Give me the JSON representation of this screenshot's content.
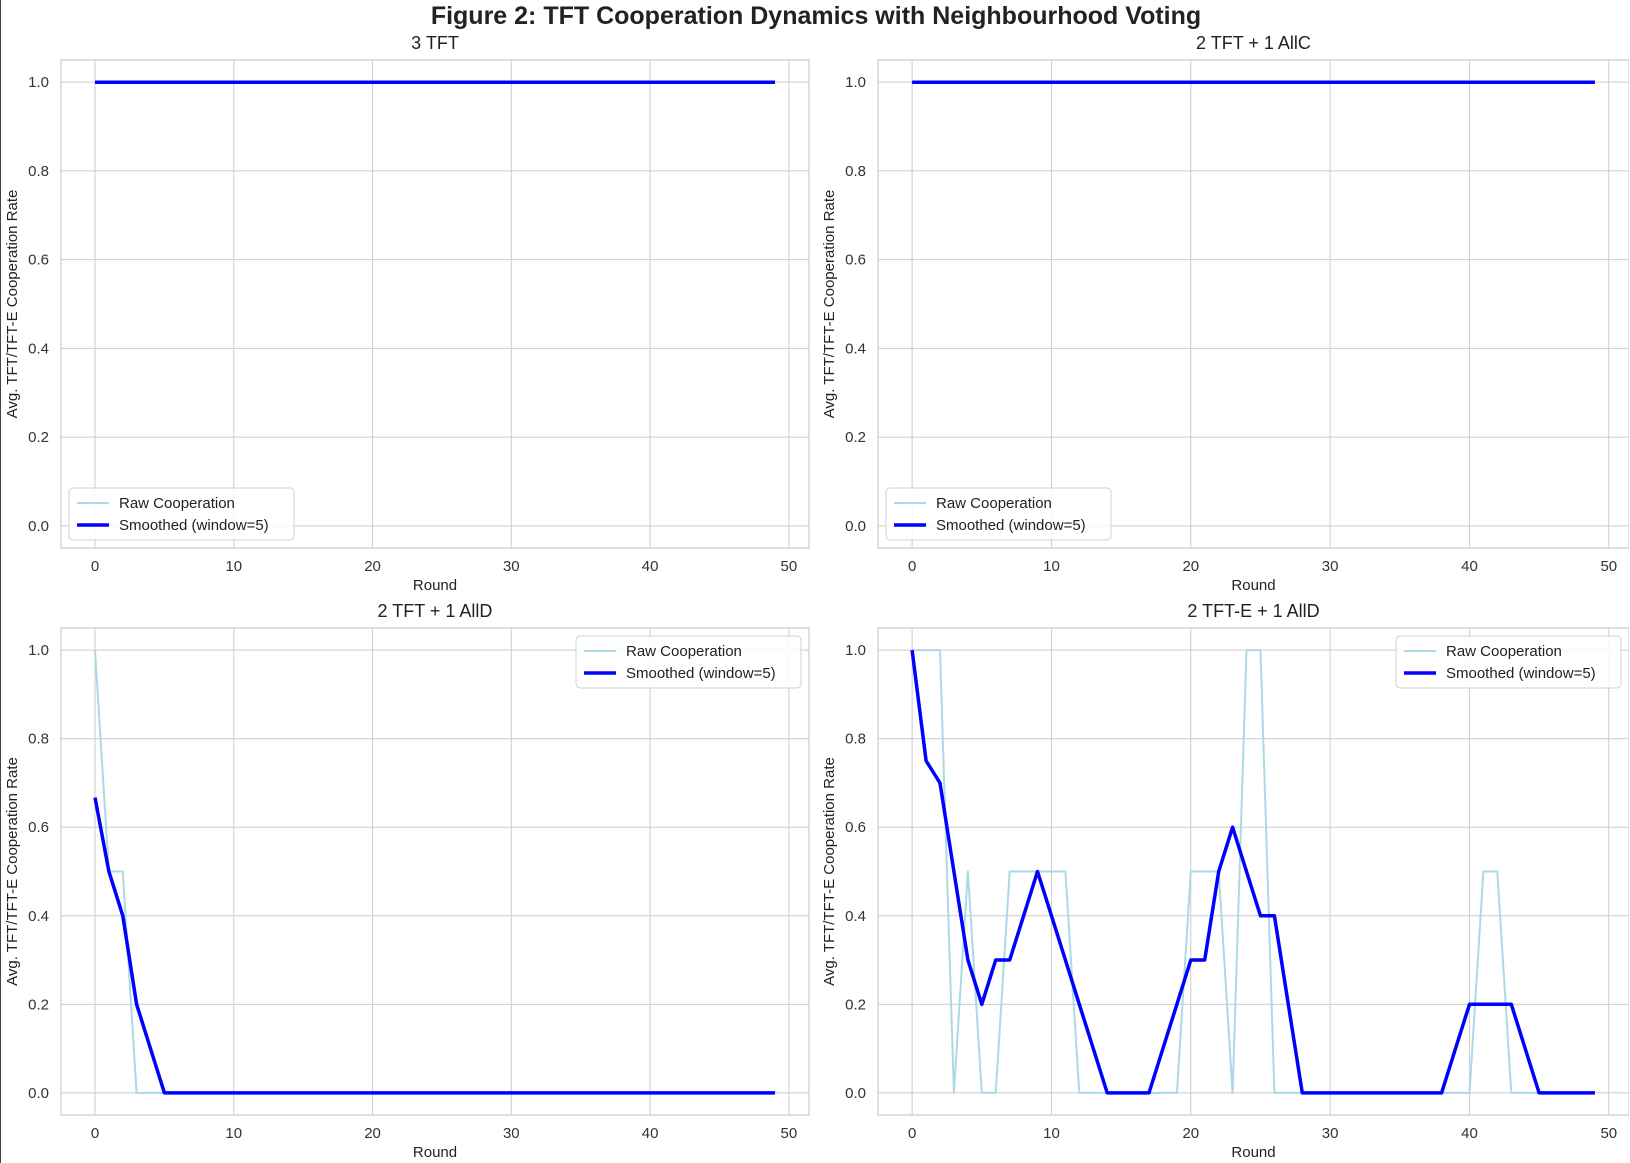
{
  "figure_title": "Figure 2: TFT Cooperation Dynamics with Neighbourhood Voting",
  "colors": {
    "raw": "#add8e6",
    "smoothed": "#0000ff",
    "grid": "#cccccc",
    "axes": "#cccccc"
  },
  "chart_data": [
    {
      "type": "line",
      "title": "3 TFT",
      "xlabel": "Round",
      "ylabel": "Avg. TFT/TFT-E Cooperation Rate",
      "xlim": [
        -2.45,
        51.45
      ],
      "ylim": [
        -0.05,
        1.05
      ],
      "xticks": [
        0,
        10,
        20,
        30,
        40,
        50
      ],
      "yticks": [
        0.0,
        0.2,
        0.4,
        0.6,
        0.8,
        1.0
      ],
      "grid": true,
      "legend_position": "lower left",
      "series": [
        {
          "name": "Raw Cooperation",
          "x": [
            0,
            49
          ],
          "y": [
            1.0,
            1.0
          ]
        },
        {
          "name": "Smoothed (window=5)",
          "x": [
            0,
            49
          ],
          "y": [
            1.0,
            1.0
          ]
        }
      ]
    },
    {
      "type": "line",
      "title": "2 TFT + 1 AllC",
      "xlabel": "Round",
      "ylabel": "Avg. TFT/TFT-E Cooperation Rate",
      "xlim": [
        -2.45,
        51.45
      ],
      "ylim": [
        -0.05,
        1.05
      ],
      "xticks": [
        0,
        10,
        20,
        30,
        40,
        50
      ],
      "yticks": [
        0.0,
        0.2,
        0.4,
        0.6,
        0.8,
        1.0
      ],
      "grid": true,
      "legend_position": "lower left",
      "series": [
        {
          "name": "Raw Cooperation",
          "x": [
            0,
            49
          ],
          "y": [
            1.0,
            1.0
          ]
        },
        {
          "name": "Smoothed (window=5)",
          "x": [
            0,
            49
          ],
          "y": [
            1.0,
            1.0
          ]
        }
      ]
    },
    {
      "type": "line",
      "title": "2 TFT + 1 AllD",
      "xlabel": "Round",
      "ylabel": "Avg. TFT/TFT-E Cooperation Rate",
      "xlim": [
        -2.45,
        51.45
      ],
      "ylim": [
        -0.05,
        1.05
      ],
      "xticks": [
        0,
        10,
        20,
        30,
        40,
        50
      ],
      "yticks": [
        0.0,
        0.2,
        0.4,
        0.6,
        0.8,
        1.0
      ],
      "grid": true,
      "legend_position": "upper right",
      "series": [
        {
          "name": "Raw Cooperation",
          "x": [
            0,
            1,
            2,
            3,
            49
          ],
          "y": [
            1.0,
            0.5,
            0.5,
            0.0,
            0.0
          ]
        },
        {
          "name": "Smoothed (window=5)",
          "x": [
            0,
            1,
            2,
            3,
            4,
            5,
            49
          ],
          "y": [
            0.667,
            0.5,
            0.4,
            0.2,
            0.1,
            0.0,
            0.0
          ]
        }
      ]
    },
    {
      "type": "line",
      "title": "2 TFT-E + 1 AllD",
      "xlabel": "Round",
      "ylabel": "Avg. TFT/TFT-E Cooperation Rate",
      "xlim": [
        -2.45,
        51.45
      ],
      "ylim": [
        -0.05,
        1.05
      ],
      "xticks": [
        0,
        10,
        20,
        30,
        40,
        50
      ],
      "yticks": [
        0.0,
        0.2,
        0.4,
        0.6,
        0.8,
        1.0
      ],
      "grid": true,
      "legend_position": "upper right",
      "series": [
        {
          "name": "Raw Cooperation",
          "x": [
            0,
            1,
            2,
            3,
            4,
            5,
            6,
            7,
            8,
            9,
            10,
            11,
            12,
            13,
            14,
            15,
            16,
            17,
            18,
            19,
            20,
            21,
            22,
            23,
            24,
            25,
            26,
            27,
            38,
            39,
            40,
            41,
            42,
            43,
            44,
            49
          ],
          "y": [
            1.0,
            1.0,
            1.0,
            0.0,
            0.5,
            0.0,
            0.0,
            0.5,
            0.5,
            0.5,
            0.5,
            0.5,
            0.0,
            0.0,
            0.0,
            0.0,
            0.0,
            0.0,
            0.0,
            0.0,
            0.5,
            0.5,
            0.5,
            0.0,
            1.0,
            1.0,
            0.0,
            0.0,
            0.0,
            0.0,
            0.0,
            0.5,
            0.5,
            0.0,
            0.0,
            0.0
          ]
        },
        {
          "name": "Smoothed (window=5)",
          "x": [
            0,
            1,
            2,
            3,
            4,
            5,
            6,
            7,
            8,
            9,
            10,
            11,
            12,
            13,
            14,
            15,
            16,
            17,
            18,
            19,
            20,
            21,
            22,
            23,
            24,
            25,
            26,
            27,
            28,
            38,
            39,
            40,
            41,
            42,
            43,
            44,
            45,
            49
          ],
          "y": [
            1.0,
            0.75,
            0.7,
            0.5,
            0.3,
            0.2,
            0.3,
            0.3,
            0.4,
            0.5,
            0.4,
            0.3,
            0.2,
            0.1,
            0.0,
            0.0,
            0.0,
            0.0,
            0.1,
            0.2,
            0.3,
            0.3,
            0.5,
            0.6,
            0.5,
            0.4,
            0.4,
            0.2,
            0.0,
            0.0,
            0.1,
            0.2,
            0.2,
            0.2,
            0.2,
            0.1,
            0.0,
            0.0
          ]
        }
      ]
    }
  ]
}
